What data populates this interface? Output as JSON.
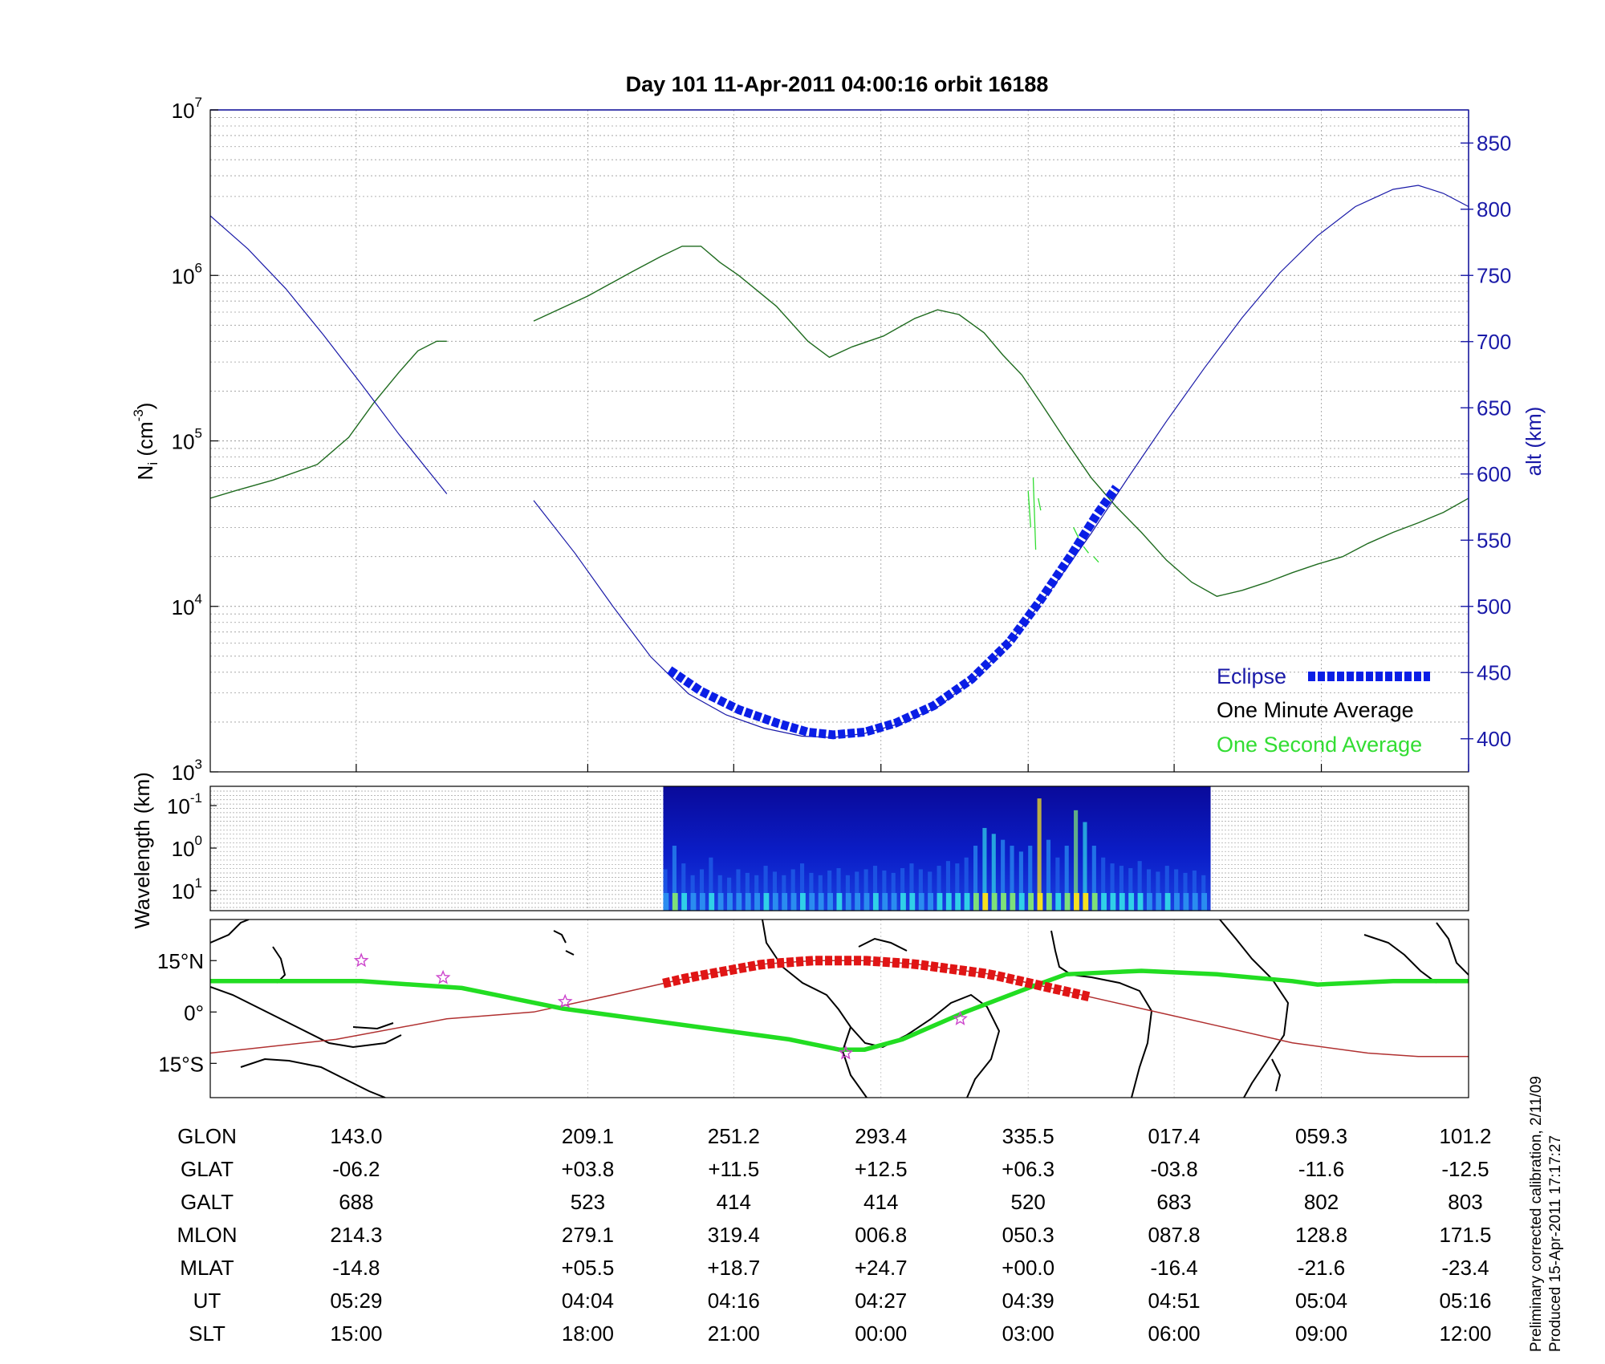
{
  "title": "Day 101  11-Apr-2011 04:00:16   orbit 16188",
  "colors": {
    "density": "#1f6b1f",
    "density_second": "#33dd33",
    "altitude": "#1a1aa8",
    "eclipse": "#0a1ee6",
    "track_ground": "#22dd22",
    "track_magnetic": "#b03030",
    "eclipse_track": "#e01515",
    "stars": "#cc44cc"
  },
  "chart_data": [
    {
      "type": "line",
      "name": "density-altitude",
      "x_range": [
        0,
        1
      ],
      "y_left": {
        "label_main": "N",
        "label_sub": "i",
        "label_unit": " (cm",
        "label_exp": "-3",
        "label_close": ")",
        "scale": "log",
        "ylim": [
          1000,
          10000000
        ],
        "ticks": [
          {
            "base": "10",
            "exp": "3",
            "value": 1000
          },
          {
            "base": "10",
            "exp": "4",
            "value": 10000
          },
          {
            "base": "10",
            "exp": "5",
            "value": 100000
          },
          {
            "base": "10",
            "exp": "6",
            "value": 1000000
          },
          {
            "base": "10",
            "exp": "7",
            "value": 10000000
          }
        ]
      },
      "y_right": {
        "label": "alt (km)",
        "ylim": [
          375,
          875
        ],
        "ticks": [
          "400",
          "450",
          "500",
          "550",
          "600",
          "650",
          "700",
          "750",
          "800",
          "850"
        ]
      },
      "legend": {
        "placement": "bottom-right",
        "entries": [
          {
            "label": "Eclipse",
            "color": "#1a1aa8"
          },
          {
            "label": "One Minute Average",
            "color": "#000000"
          },
          {
            "label": "One Second Average",
            "color": "#22dd22"
          }
        ]
      },
      "series": [
        {
          "kind": "density",
          "segments": [
            [
              [
                0.0,
                45000
              ],
              [
                0.02,
                50000
              ],
              [
                0.05,
                58000
              ],
              [
                0.085,
                72000
              ],
              [
                0.11,
                105000
              ],
              [
                0.13,
                170000
              ],
              [
                0.15,
                260000
              ],
              [
                0.165,
                350000
              ],
              [
                0.18,
                400000
              ],
              [
                0.188,
                400000
              ]
            ],
            [
              [
                0.257,
                530000
              ],
              [
                0.3,
                750000
              ],
              [
                0.335,
                1050000
              ],
              [
                0.358,
                1300000
              ],
              [
                0.375,
                1500000
              ],
              [
                0.39,
                1500000
              ],
              [
                0.405,
                1200000
              ],
              [
                0.42,
                1000000
              ],
              [
                0.45,
                650000
              ],
              [
                0.475,
                400000
              ],
              [
                0.492,
                320000
              ],
              [
                0.51,
                370000
              ],
              [
                0.535,
                430000
              ],
              [
                0.56,
                550000
              ],
              [
                0.578,
                620000
              ],
              [
                0.595,
                580000
              ],
              [
                0.615,
                450000
              ],
              [
                0.63,
                330000
              ],
              [
                0.645,
                250000
              ],
              [
                0.66,
                170000
              ],
              [
                0.68,
                100000
              ],
              [
                0.7,
                60000
              ],
              [
                0.72,
                40000
              ],
              [
                0.74,
                28000
              ],
              [
                0.76,
                19000
              ],
              [
                0.78,
                14000
              ],
              [
                0.8,
                11500
              ],
              [
                0.82,
                12500
              ],
              [
                0.84,
                14000
              ],
              [
                0.86,
                16000
              ],
              [
                0.88,
                18000
              ],
              [
                0.9,
                20000
              ],
              [
                0.92,
                24000
              ],
              [
                0.94,
                28000
              ],
              [
                0.96,
                32000
              ],
              [
                0.98,
                37000
              ],
              [
                1.0,
                45000
              ]
            ]
          ]
        },
        {
          "kind": "altitude",
          "segments": [
            [
              [
                0.0,
                795
              ],
              [
                0.03,
                770
              ],
              [
                0.06,
                740
              ],
              [
                0.09,
                705
              ],
              [
                0.12,
                668
              ],
              [
                0.15,
                630
              ],
              [
                0.188,
                585
              ]
            ],
            [
              [
                0.257,
                580
              ],
              [
                0.29,
                540
              ],
              [
                0.32,
                500
              ],
              [
                0.35,
                462
              ],
              [
                0.38,
                434
              ],
              [
                0.41,
                418
              ],
              [
                0.44,
                408
              ],
              [
                0.47,
                402
              ],
              [
                0.495,
                401
              ],
              [
                0.52,
                404
              ],
              [
                0.55,
                412
              ],
              [
                0.58,
                425
              ],
              [
                0.61,
                448
              ],
              [
                0.64,
                478
              ],
              [
                0.67,
                515
              ],
              [
                0.7,
                555
              ],
              [
                0.73,
                598
              ],
              [
                0.76,
                640
              ],
              [
                0.79,
                680
              ],
              [
                0.82,
                718
              ],
              [
                0.85,
                752
              ],
              [
                0.88,
                780
              ],
              [
                0.91,
                802
              ],
              [
                0.94,
                815
              ],
              [
                0.96,
                818
              ],
              [
                0.98,
                812
              ],
              [
                1.0,
                802
              ]
            ]
          ]
        },
        {
          "kind": "eclipse",
          "segments": [
            [
              [
                0.365,
                452
              ],
              [
                0.39,
                436
              ],
              [
                0.42,
                422
              ],
              [
                0.45,
                412
              ],
              [
                0.475,
                405
              ],
              [
                0.495,
                403
              ],
              [
                0.52,
                405
              ],
              [
                0.545,
                412
              ],
              [
                0.575,
                425
              ],
              [
                0.605,
                445
              ],
              [
                0.635,
                473
              ],
              [
                0.66,
                505
              ],
              [
                0.685,
                540
              ],
              [
                0.705,
                570
              ],
              [
                0.72,
                590
              ]
            ]
          ]
        }
      ]
    },
    {
      "type": "heatmap",
      "name": "wavelength-spectrogram",
      "ylabel": "Wavelength (km)",
      "y_ticks": [
        {
          "base": "10",
          "exp": "-1"
        },
        {
          "base": "10",
          "exp": "0"
        },
        {
          "base": "10",
          "exp": "1"
        }
      ],
      "x_extent": [
        0.36,
        0.795
      ],
      "intensity": [
        0.35,
        0.55,
        0.4,
        0.3,
        0.35,
        0.45,
        0.3,
        0.28,
        0.35,
        0.32,
        0.3,
        0.38,
        0.33,
        0.3,
        0.35,
        0.4,
        0.32,
        0.3,
        0.34,
        0.36,
        0.3,
        0.33,
        0.35,
        0.38,
        0.34,
        0.32,
        0.36,
        0.4,
        0.35,
        0.33,
        0.38,
        0.42,
        0.4,
        0.45,
        0.55,
        0.7,
        0.65,
        0.6,
        0.55,
        0.5,
        0.55,
        0.95,
        0.6,
        0.45,
        0.55,
        0.85,
        0.75,
        0.55,
        0.45,
        0.4,
        0.38,
        0.36,
        0.42,
        0.35,
        0.33,
        0.38,
        0.35,
        0.32,
        0.34,
        0.3
      ]
    },
    {
      "type": "line",
      "name": "ground-track-map",
      "y_ticks": [
        {
          "label": "15°N",
          "lat": 15
        },
        {
          "label": "0°",
          "lat": 0
        },
        {
          "label": "15°S",
          "lat": -15
        }
      ],
      "ylim": [
        -25,
        27
      ],
      "ground_track": [
        [
          0.0,
          9
        ],
        [
          0.12,
          9
        ],
        [
          0.2,
          7
        ],
        [
          0.28,
          1
        ],
        [
          0.34,
          -2
        ],
        [
          0.4,
          -5
        ],
        [
          0.46,
          -8
        ],
        [
          0.5,
          -11
        ],
        [
          0.52,
          -11
        ],
        [
          0.55,
          -8
        ],
        [
          0.6,
          0
        ],
        [
          0.65,
          7
        ],
        [
          0.68,
          11
        ],
        [
          0.74,
          12
        ],
        [
          0.8,
          11
        ],
        [
          0.86,
          9
        ],
        [
          0.88,
          8
        ],
        [
          0.94,
          9
        ],
        [
          1.0,
          9
        ]
      ],
      "magnetic_track": [
        [
          0.0,
          -12
        ],
        [
          0.1,
          -8
        ],
        [
          0.188,
          -2
        ],
        [
          0.257,
          0
        ],
        [
          0.32,
          5
        ],
        [
          0.38,
          10
        ],
        [
          0.44,
          14
        ],
        [
          0.48,
          15
        ],
        [
          0.52,
          15
        ],
        [
          0.56,
          14
        ],
        [
          0.62,
          11
        ],
        [
          0.68,
          6
        ],
        [
          0.74,
          1
        ],
        [
          0.8,
          -4
        ],
        [
          0.86,
          -9
        ],
        [
          0.92,
          -12
        ],
        [
          0.96,
          -13
        ],
        [
          1.0,
          -13
        ]
      ],
      "eclipse_track": [
        0.36,
        0.7
      ],
      "stars": [
        [
          0.12,
          15
        ],
        [
          0.185,
          10
        ],
        [
          0.282,
          3
        ],
        [
          0.505,
          -12
        ],
        [
          0.596,
          -2
        ]
      ]
    }
  ],
  "table": {
    "columns_x": [
      0.116,
      0.3,
      0.416,
      0.533,
      0.65,
      0.766,
      0.883,
      1.0
    ],
    "rows": [
      {
        "label": "GLON",
        "values": [
          "143.0",
          "209.1",
          "251.2",
          "293.4",
          "335.5",
          "017.4",
          "059.3",
          "101.2"
        ]
      },
      {
        "label": "GLAT",
        "values": [
          "-06.2",
          "+03.8",
          "+11.5",
          "+12.5",
          "+06.3",
          "-03.8",
          "-11.6",
          "-12.5"
        ]
      },
      {
        "label": "GALT",
        "values": [
          "688",
          "523",
          "414",
          "414",
          "520",
          "683",
          "802",
          "803"
        ]
      },
      {
        "label": "MLON",
        "values": [
          "214.3",
          "279.1",
          "319.4",
          "006.8",
          "050.3",
          "087.8",
          "128.8",
          "171.5"
        ]
      },
      {
        "label": "MLAT",
        "values": [
          "-14.8",
          "+05.5",
          "+18.7",
          "+24.7",
          "+00.0",
          "-16.4",
          "-21.6",
          "-23.4"
        ]
      },
      {
        "label": "UT",
        "values": [
          "05:29",
          "04:04",
          "04:16",
          "04:27",
          "04:39",
          "04:51",
          "05:04",
          "05:16"
        ]
      },
      {
        "label": "SLT",
        "values": [
          "15:00",
          "18:00",
          "21:00",
          "00:00",
          "03:00",
          "06:00",
          "09:00",
          "12:00"
        ]
      }
    ]
  },
  "notes": {
    "line1": "Preliminary corrected calibration, 2/11/09",
    "line2": "Produced 15-Apr-2011 17:17:27"
  }
}
